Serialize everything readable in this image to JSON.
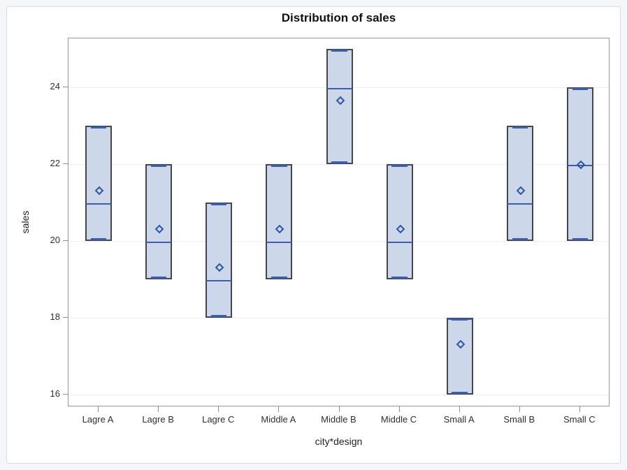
{
  "page": {
    "background_color": "#f5f6fa",
    "panel_background": "#ffffff",
    "panel_border_color": "#d7dae3"
  },
  "chart_data": {
    "type": "box",
    "title": "Distribution of sales",
    "xlabel": "city*design",
    "ylabel": "sales",
    "categories": [
      "Lagre A",
      "Lagre B",
      "Lagre C",
      "Middle A",
      "Middle B",
      "Middle C",
      "Small A",
      "Small B",
      "Small C"
    ],
    "series": [
      {
        "category": "Lagre A",
        "low": 20,
        "q1": 20,
        "median": 21,
        "q3": 23,
        "high": 23,
        "mean": 21.33
      },
      {
        "category": "Lagre B",
        "low": 19,
        "q1": 19,
        "median": 20,
        "q3": 22,
        "high": 22,
        "mean": 20.33
      },
      {
        "category": "Lagre C",
        "low": 18,
        "q1": 18,
        "median": 19,
        "q3": 21,
        "high": 21,
        "mean": 19.33
      },
      {
        "category": "Middle A",
        "low": 19,
        "q1": 19,
        "median": 20,
        "q3": 22,
        "high": 22,
        "mean": 20.33
      },
      {
        "category": "Middle B",
        "low": 22,
        "q1": 22,
        "median": 24,
        "q3": 25,
        "high": 25,
        "mean": 23.67
      },
      {
        "category": "Middle C",
        "low": 19,
        "q1": 19,
        "median": 20,
        "q3": 22,
        "high": 22,
        "mean": 20.33
      },
      {
        "category": "Small A",
        "low": 16,
        "q1": 16,
        "median": 18,
        "q3": 18,
        "high": 18,
        "mean": 17.33
      },
      {
        "category": "Small B",
        "low": 20,
        "q1": 20,
        "median": 21,
        "q3": 23,
        "high": 23,
        "mean": 21.33
      },
      {
        "category": "Small C",
        "low": 20,
        "q1": 20,
        "median": 22,
        "q3": 24,
        "high": 24,
        "mean": 22.0
      }
    ],
    "yticks": [
      16,
      18,
      20,
      22,
      24
    ],
    "ylim": [
      15.65,
      25.3
    ],
    "grid": true,
    "legend": "none",
    "colors": {
      "box_fill": "#ccd8e9",
      "box_border": "#43474c",
      "median_line": "#3a5fae",
      "whisker_cap": "#3a5fae",
      "mean_marker": "#2c55a5",
      "gridline": "#efefef",
      "axis_frame": "#979797",
      "tick_text": "#2e2e2e",
      "title_text": "#111111"
    }
  }
}
